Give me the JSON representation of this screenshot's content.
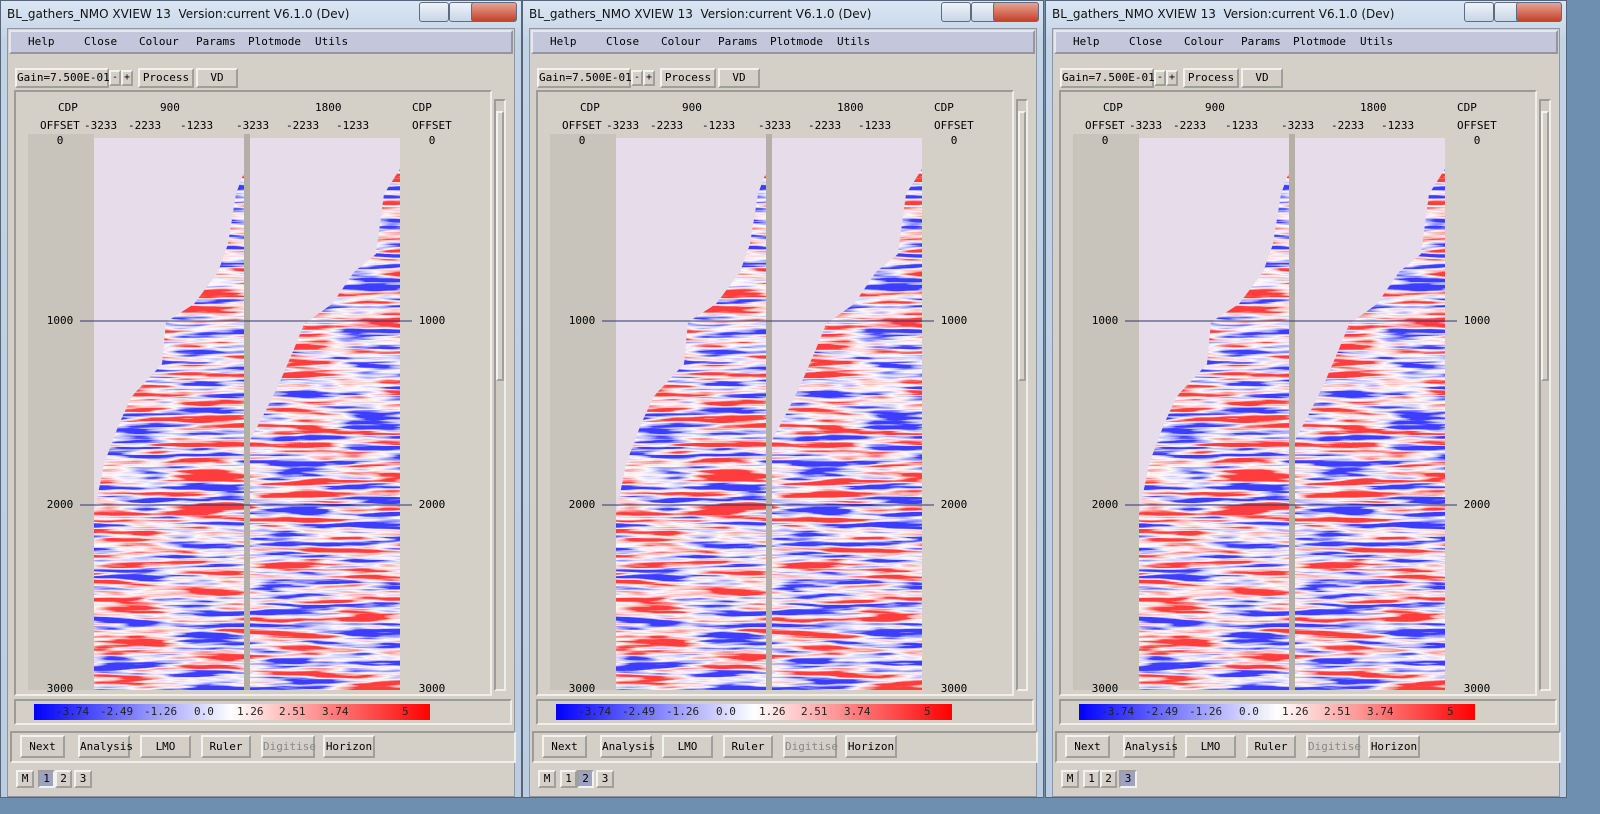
{
  "windows": [
    {
      "title": "BL_gathers_NMO XVIEW 13  Version:current V6.1.0 (Dev)",
      "menu": [
        "Help",
        "Close",
        "Colour",
        "Params",
        "Plotmode",
        "Utils"
      ],
      "gain": "Gain=7.500E-01",
      "gain_buttons": [
        "-",
        "+"
      ],
      "toolbar": [
        "Process",
        "VD"
      ],
      "cdp_label": "CDP",
      "offset_label": "OFFSET",
      "cdps": [
        "900",
        "1800"
      ],
      "offsets": [
        "-3233",
        "-2233",
        "-1233",
        "-3233",
        "-2233",
        "-1233"
      ],
      "times": [
        "0",
        "1000",
        "2000",
        "3000"
      ],
      "colorbar": [
        "-",
        "-3.74",
        "-2.49",
        "-1.26",
        "0.0",
        "1.26",
        "2.51",
        "3.74",
        "5"
      ],
      "buttons": [
        "Next",
        "Analysis",
        "LMO",
        "Ruler",
        "Digitise",
        "Horizon"
      ],
      "tabs": [
        "M",
        "1",
        "2",
        "3"
      ],
      "active_tab": 1
    },
    {
      "title": "BL_gathers_NMO XVIEW 13  Version:current V6.1.0 (Dev)",
      "menu": [
        "Help",
        "Close",
        "Colour",
        "Params",
        "Plotmode",
        "Utils"
      ],
      "gain": "Gain=7.500E-01",
      "gain_buttons": [
        "-",
        "+"
      ],
      "toolbar": [
        "Process",
        "VD"
      ],
      "cdp_label": "CDP",
      "offset_label": "OFFSET",
      "cdps": [
        "900",
        "1800"
      ],
      "offsets": [
        "-3233",
        "-2233",
        "-1233",
        "-3233",
        "-2233",
        "-1233"
      ],
      "times": [
        "0",
        "1000",
        "2000",
        "3000"
      ],
      "colorbar": [
        "-",
        "-3.74",
        "-2.49",
        "-1.26",
        "0.0",
        "1.26",
        "2.51",
        "3.74",
        "5"
      ],
      "buttons": [
        "Next",
        "Analysis",
        "LMO",
        "Ruler",
        "Digitise",
        "Horizon"
      ],
      "tabs": [
        "M",
        "1",
        "2",
        "3"
      ],
      "active_tab": 2
    },
    {
      "title": "BL_gathers_NMO XVIEW 13  Version:current V6.1.0 (Dev)",
      "menu": [
        "Help",
        "Close",
        "Colour",
        "Params",
        "Plotmode",
        "Utils"
      ],
      "gain": "Gain=7.500E-01",
      "gain_buttons": [
        "-",
        "+"
      ],
      "toolbar": [
        "Process",
        "VD"
      ],
      "cdp_label": "CDP",
      "offset_label": "OFFSET",
      "cdps": [
        "900",
        "1800"
      ],
      "offsets": [
        "-3233",
        "-2233",
        "-1233",
        "-3233",
        "-2233",
        "-1233"
      ],
      "times": [
        "0",
        "1000",
        "2000",
        "3000"
      ],
      "colorbar": [
        "-",
        "-3.74",
        "-2.49",
        "-1.26",
        "0.0",
        "1.26",
        "2.51",
        "3.74",
        "5"
      ],
      "buttons": [
        "Next",
        "Analysis",
        "LMO",
        "Ruler",
        "Digitise",
        "Horizon"
      ],
      "tabs": [
        "M",
        "1",
        "2",
        "3"
      ],
      "active_tab": 3
    }
  ]
}
